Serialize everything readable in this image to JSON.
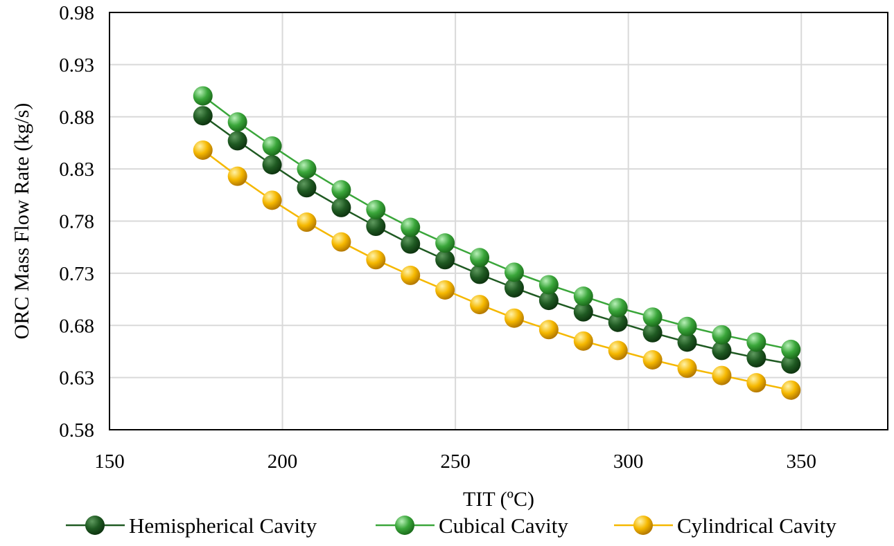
{
  "chart_data": {
    "type": "line",
    "xlabel": "TIT (ºC)",
    "ylabel": "ORC Mass Flow Rate (kg/s)",
    "xlim": [
      150,
      375
    ],
    "ylim": [
      0.58,
      0.98
    ],
    "xticks": [
      150,
      200,
      250,
      300,
      350
    ],
    "xtick_labels": [
      "150",
      "200",
      "250",
      "300",
      "350"
    ],
    "yticks": [
      0.58,
      0.63,
      0.68,
      0.73,
      0.78,
      0.83,
      0.88,
      0.93,
      0.98
    ],
    "ytick_labels": [
      "0.58",
      "0.63",
      "0.68",
      "0.73",
      "0.78",
      "0.83",
      "0.88",
      "0.93",
      "0.98"
    ],
    "grid": true,
    "legend_position": "bottom",
    "x": [
      177,
      187,
      197,
      207,
      217,
      227,
      237,
      247,
      257,
      267,
      277,
      287,
      297,
      307,
      317,
      327,
      337,
      347
    ],
    "series": [
      {
        "name": "Hemispherical Cavity",
        "color": "#1f5a22",
        "values": [
          0.881,
          0.857,
          0.834,
          0.812,
          0.793,
          0.775,
          0.758,
          0.743,
          0.729,
          0.716,
          0.704,
          0.693,
          0.683,
          0.673,
          0.664,
          0.656,
          0.649,
          0.643
        ]
      },
      {
        "name": "Cubical Cavity",
        "color": "#3aa63a",
        "values": [
          0.9,
          0.875,
          0.852,
          0.83,
          0.81,
          0.791,
          0.774,
          0.759,
          0.745,
          0.731,
          0.719,
          0.708,
          0.697,
          0.688,
          0.679,
          0.671,
          0.664,
          0.657
        ]
      },
      {
        "name": "Cylindrical Cavity",
        "color": "#f5b800",
        "values": [
          0.848,
          0.823,
          0.8,
          0.779,
          0.76,
          0.743,
          0.728,
          0.714,
          0.7,
          0.687,
          0.676,
          0.665,
          0.656,
          0.647,
          0.639,
          0.632,
          0.625,
          0.618
        ]
      }
    ]
  }
}
